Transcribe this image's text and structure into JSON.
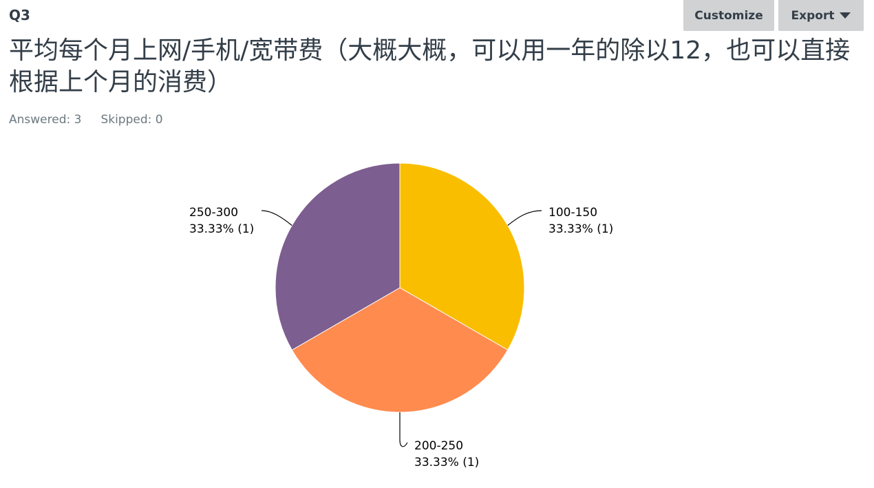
{
  "question": {
    "number": "Q3",
    "title": "平均每个月上网/手机/宽带费（大概大概，可以用一年的除以12，也可以直接根据上个月的消费）",
    "answered_label": "Answered: 3",
    "skipped_label": "Skipped: 0"
  },
  "toolbar": {
    "customize_label": "Customize",
    "export_label": "Export"
  },
  "chart_data": {
    "type": "pie",
    "categories": [
      "100-150",
      "200-250",
      "250-300"
    ],
    "values": [
      33.33,
      33.33,
      33.33
    ],
    "counts": [
      1,
      1,
      1
    ],
    "value_labels": [
      "33.33% (1)",
      "33.33% (1)",
      "33.33% (1)"
    ],
    "colors": [
      "#f9be00",
      "#ff8b4f",
      "#7d5e90"
    ],
    "title": "",
    "legend": "none"
  }
}
